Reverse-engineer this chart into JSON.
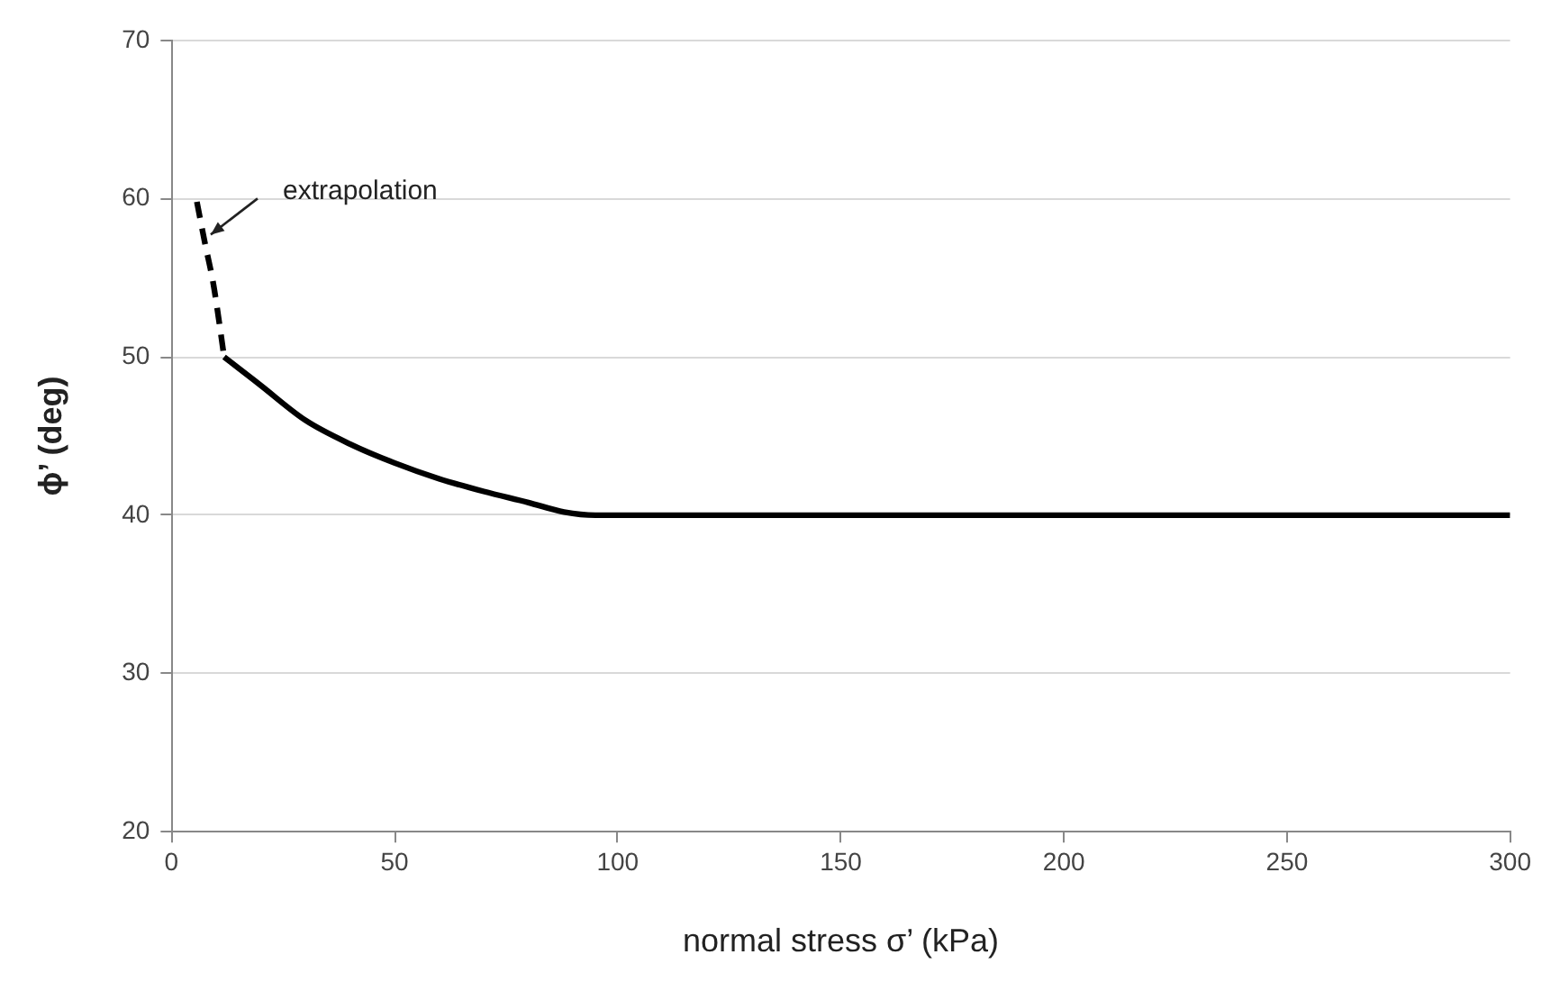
{
  "chart_data": {
    "type": "line",
    "xlabel": "normal stress σ’ (kPa)",
    "ylabel": "ϕ’ (deg)",
    "xlim": [
      0,
      300
    ],
    "xticks": [
      0,
      50,
      100,
      150,
      200,
      250,
      300
    ],
    "ylim": [
      20,
      70
    ],
    "yticks": [
      20,
      30,
      40,
      50,
      60,
      70
    ],
    "grid": "y",
    "legend": false,
    "marker": "none",
    "series": [
      {
        "color": "#000000",
        "line_style": "solid",
        "x": [
          11.8,
          15,
          20,
          30,
          40,
          50,
          60,
          70,
          80,
          88,
          95,
          150,
          200,
          300
        ],
        "values": [
          50,
          49.3,
          48.2,
          46,
          44.5,
          43.3,
          42.3,
          41.5,
          40.8,
          40.2,
          40,
          40,
          40,
          40
        ]
      },
      {
        "color": "#000000",
        "line_style": "dashed",
        "x": [
          5.7,
          7.5,
          9.4,
          10.8,
          11.8
        ],
        "values": [
          59.8,
          57.2,
          54.6,
          52,
          50
        ]
      }
    ],
    "annotations": [
      {
        "text": "extrapolation",
        "x": 8,
        "y": 57.5
      }
    ]
  }
}
